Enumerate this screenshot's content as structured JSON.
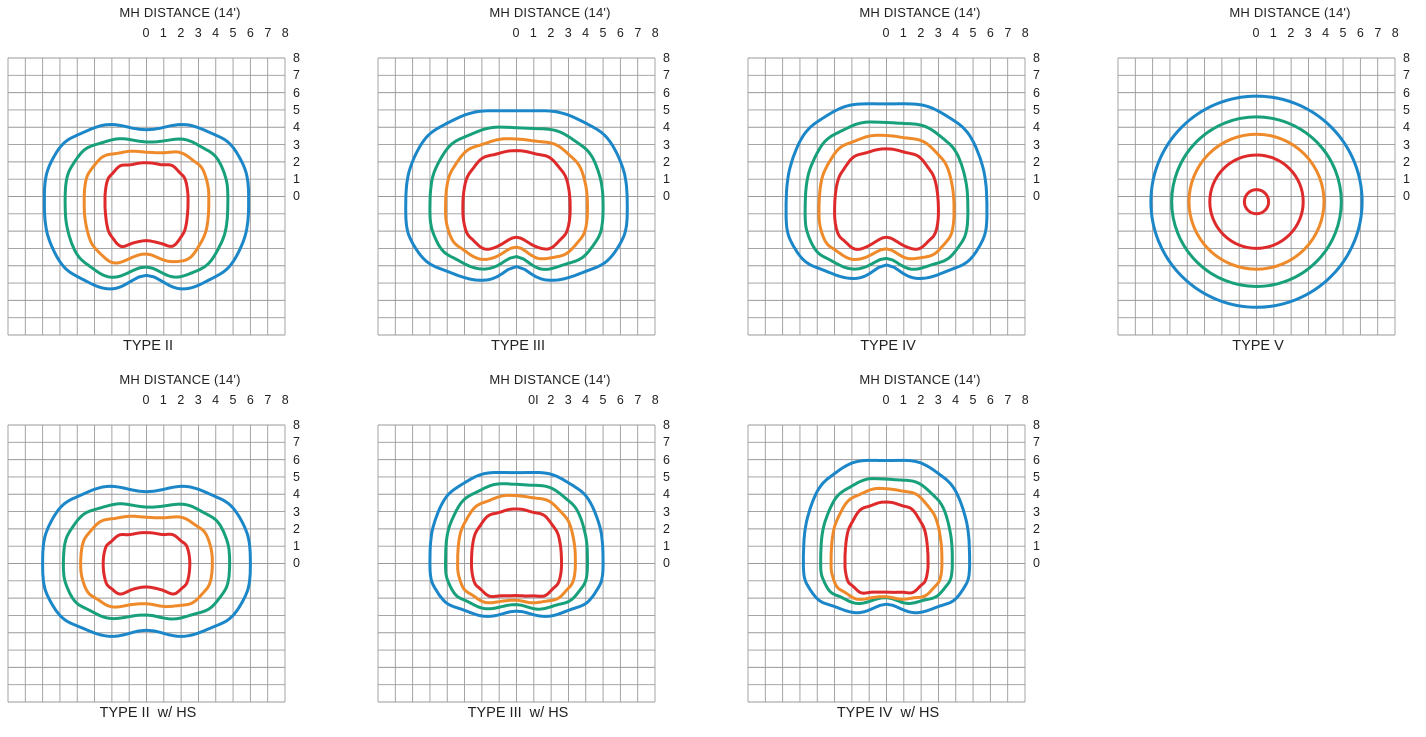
{
  "panels": [
    {
      "id": "type-ii",
      "title": "TYPE II",
      "subtitle": "MH DISTANCE (14')",
      "x_ticks": [
        "0",
        "1",
        "2",
        "3",
        "4",
        "5",
        "6",
        "7",
        "8"
      ],
      "y_ticks": [
        "8",
        "7",
        "6",
        "5",
        "4",
        "3",
        "2",
        "1",
        "0"
      ]
    },
    {
      "id": "type-iii",
      "title": "TYPE III",
      "subtitle": "MH DISTANCE (14')",
      "x_ticks": [
        "0",
        "1",
        "2",
        "3",
        "4",
        "5",
        "6",
        "7",
        "8"
      ],
      "y_ticks": [
        "8",
        "7",
        "6",
        "5",
        "4",
        "3",
        "2",
        "1",
        "0"
      ]
    },
    {
      "id": "type-iv",
      "title": "TYPE IV",
      "subtitle": "MH DISTANCE (14')",
      "x_ticks": [
        "0",
        "1",
        "2",
        "3",
        "4",
        "5",
        "6",
        "7",
        "8"
      ],
      "y_ticks": [
        "8",
        "7",
        "6",
        "5",
        "4",
        "3",
        "2",
        "1",
        "0"
      ]
    },
    {
      "id": "type-v",
      "title": "TYPE V",
      "subtitle": "MH DISTANCE (14')",
      "x_ticks": [
        "0",
        "1",
        "2",
        "3",
        "4",
        "5",
        "6",
        "7",
        "8"
      ],
      "y_ticks": [
        "8",
        "7",
        "6",
        "5",
        "4",
        "3",
        "2",
        "1",
        "0"
      ]
    },
    {
      "id": "type-ii-hs",
      "title": "TYPE II  w/ HS",
      "subtitle": "MH DISTANCE (14')",
      "x_ticks": [
        "0",
        "1",
        "2",
        "3",
        "4",
        "5",
        "6",
        "7",
        "8"
      ],
      "y_ticks": [
        "8",
        "7",
        "6",
        "5",
        "4",
        "3",
        "2",
        "1",
        "0"
      ]
    },
    {
      "id": "type-iii-hs",
      "title": "TYPE III  w/ HS",
      "subtitle": "MH DISTANCE (14')",
      "x_ticks": [
        "0I",
        "2",
        "3",
        "4",
        "5",
        "6",
        "7",
        "8"
      ],
      "y_ticks": [
        "8",
        "7",
        "6",
        "5",
        "4",
        "3",
        "2",
        "1",
        "0"
      ]
    },
    {
      "id": "type-iv-hs",
      "title": "TYPE IV  w/ HS",
      "subtitle": "MH DISTANCE (14')",
      "x_ticks": [
        "0",
        "1",
        "2",
        "3",
        "4",
        "5",
        "6",
        "7",
        "8"
      ],
      "y_ticks": [
        "8",
        "7",
        "6",
        "5",
        "4",
        "3",
        "2",
        "1",
        "0"
      ]
    }
  ],
  "chart_data": {
    "type": "isofootcandle-contour",
    "grid": true,
    "grid_cells": 16,
    "series_colors": [
      "#1b86c8",
      "#17a07a",
      "#ee8a2a",
      "#de2a2a"
    ],
    "x_range": [
      -8,
      8
    ],
    "y_range": [
      -8,
      8
    ]
  }
}
